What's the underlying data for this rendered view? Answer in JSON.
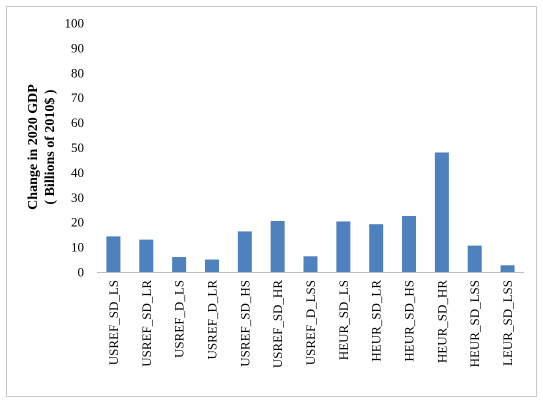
{
  "chart_data": {
    "type": "bar",
    "title": "",
    "xlabel": "",
    "ylabel_line1": "Change in 2020 GDP",
    "ylabel_line2": "( Billions of 2010$ )",
    "ylim": [
      0,
      100
    ],
    "yticks": [
      0,
      10,
      20,
      30,
      40,
      50,
      60,
      70,
      80,
      90,
      100
    ],
    "grid": false,
    "legend": "none",
    "bar_color": "#4f81bd",
    "categories": [
      "USREF_SD_LS",
      "USREF_SD_LR",
      "USREF_D_LS",
      "USREF_D_LR",
      "USREF_SD_HS",
      "USREF_SD_HR",
      "USREF_D_LSS",
      "HEUR_SD_LS",
      "HEUR_SD_LR",
      "HEUR_SD_HS",
      "HEUR_SD_HR",
      "HEUR_SD_LSS",
      "LEUR_SD_LSS"
    ],
    "values": [
      14.3,
      13.0,
      6.0,
      5.0,
      16.3,
      20.5,
      6.3,
      20.3,
      19.2,
      22.5,
      48.0,
      10.6,
      2.7
    ]
  }
}
